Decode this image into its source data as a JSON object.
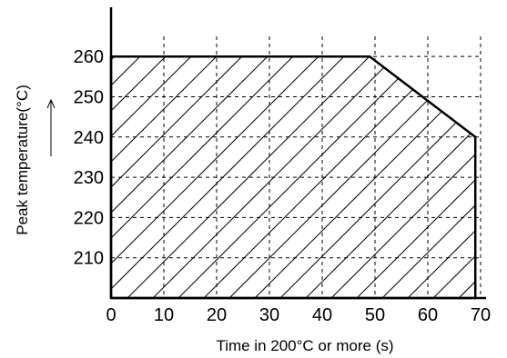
{
  "chart_data": {
    "type": "area",
    "title": "",
    "xlabel": "Time in 200°C or more (s)",
    "ylabel": "Peak temperature(°C)",
    "ylabel_arrow": "up",
    "x_ticks": [
      0,
      10,
      20,
      30,
      40,
      50,
      60,
      70
    ],
    "y_ticks": [
      210,
      220,
      230,
      240,
      250,
      260
    ],
    "xlim": [
      0,
      70
    ],
    "ylim": [
      200,
      265
    ],
    "grid": true,
    "grid_style": "dashed",
    "fill_pattern": "diagonal-hatch",
    "region": {
      "x": [
        0,
        49,
        69,
        69,
        0
      ],
      "y": [
        260,
        260,
        240,
        200,
        200
      ]
    }
  }
}
